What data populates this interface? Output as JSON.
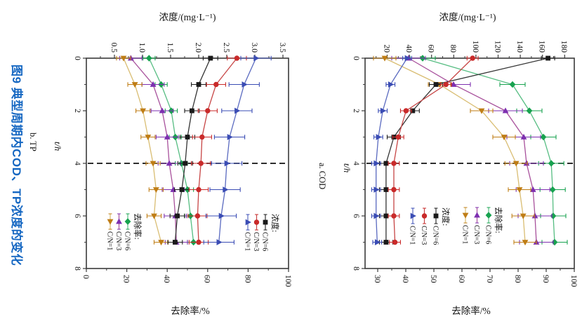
{
  "figure": {
    "caption": "图9 典型周期内COD、TP浓度的变化",
    "caption_color": "#1567c2",
    "background": "#ffffff",
    "spine_color": "#3a3a3a",
    "phase_line_color": "#111111"
  },
  "chart_data": [
    {
      "id": "cod",
      "type": "line",
      "panel_label": "a. COD",
      "time_axis": {
        "label": "t/h",
        "range": [
          0,
          8
        ],
        "ticks": [
          0,
          2,
          4,
          6,
          8
        ],
        "tick_labels": [
          "0",
          "2",
          "4",
          "6",
          "8"
        ],
        "minor": [
          1,
          3,
          5,
          7
        ]
      },
      "conc_axis": {
        "title": "浓度/(mg·L⁻¹)",
        "range": [
          0,
          188
        ],
        "ticks": [
          20,
          40,
          60,
          80,
          100,
          120,
          140,
          160,
          180
        ],
        "tick_labels": [
          "20",
          "40",
          "60",
          "80",
          "100",
          "120",
          "140",
          "160",
          "180"
        ],
        "minor": [
          10,
          30,
          50,
          70,
          90,
          110,
          130,
          150,
          170
        ]
      },
      "removal_axis": {
        "title": "去除率/%",
        "range": [
          25.6,
          100
        ],
        "ticks": [
          30,
          40,
          50,
          60,
          70,
          80,
          90,
          100
        ],
        "tick_labels": [
          "30",
          "40",
          "50",
          "60",
          "70",
          "80",
          "90",
          "100"
        ],
        "minor": [
          35,
          45,
          55,
          65,
          75,
          85,
          95
        ]
      },
      "phase_line_t": 4,
      "t": [
        0,
        1,
        2,
        3,
        4,
        5,
        6,
        7
      ],
      "series": [
        {
          "group": "removal",
          "name": "C/N=6",
          "marker": "diamond",
          "color": "#17a24f",
          "line": "#56bd82",
          "err": 4.5,
          "values": [
            46,
            78,
            84,
            89,
            91.8,
            92.3,
            92.5,
            93
          ]
        },
        {
          "group": "removal",
          "name": "C/N=3",
          "marker": "triangle-up",
          "color": "#7d2fb0",
          "line": "#a8519c",
          "err": 6,
          "values": [
            41,
            57,
            75.5,
            82,
            83,
            85.3,
            86,
            86.5
          ]
        },
        {
          "group": "removal",
          "name": "C/N=1",
          "marker": "triangle-down",
          "color": "#bf7d15",
          "line": "#d9bd72",
          "err": 4,
          "values": [
            32.5,
            52,
            67,
            75,
            79.3,
            80.5,
            81.8,
            82.5
          ]
        },
        {
          "group": "conc",
          "name": "C/N=6",
          "marker": "square",
          "color": "#1a1a1a",
          "line": "#333333",
          "err": 6,
          "values": [
            165,
            64,
            43,
            26,
            19,
            19,
            19,
            19
          ]
        },
        {
          "group": "conc",
          "name": "C/N=3",
          "marker": "circle",
          "color": "#c92a2a",
          "line": "#c74545",
          "err": 5,
          "values": [
            97,
            73,
            37,
            30,
            26,
            26,
            26,
            27
          ]
        },
        {
          "group": "conc",
          "name": "C/N=1",
          "marker": "triangle-right",
          "color": "#3a4cb4",
          "line": "#5a6ac0",
          "err": 4,
          "values": [
            38,
            23,
            16,
            12,
            10,
            10,
            10,
            11
          ]
        }
      ],
      "legends": [
        {
          "title": "浓度:",
          "group": "conc"
        },
        {
          "title": "去除率:",
          "group": "removal"
        }
      ]
    },
    {
      "id": "tp",
      "type": "line",
      "panel_label": "b. TP",
      "time_axis": {
        "label": "t/h",
        "range": [
          0,
          8
        ],
        "ticks": [
          0,
          2,
          4,
          6,
          8
        ],
        "tick_labels": [
          "0",
          "2",
          "4",
          "6",
          "8"
        ],
        "minor": [
          1,
          3,
          5,
          7
        ]
      },
      "conc_axis": {
        "title": "浓度/(mg·L⁻¹)",
        "range": [
          0,
          3.6
        ],
        "ticks": [
          0.5,
          1.0,
          1.5,
          2.0,
          2.5,
          3.0,
          3.5
        ],
        "tick_labels": [
          "0.5",
          "1.0",
          "1.5",
          "2.0",
          "2.5",
          "3.0",
          "3.5"
        ],
        "minor": [
          0.25,
          0.75,
          1.25,
          1.75,
          2.25,
          2.75,
          3.25
        ]
      },
      "removal_axis": {
        "title": "去除率/%",
        "range": [
          0,
          100
        ],
        "ticks": [
          0,
          20,
          40,
          60,
          80,
          100
        ],
        "tick_labels": [
          "0",
          "20",
          "40",
          "60",
          "80",
          "100"
        ],
        "minor": [
          10,
          30,
          50,
          70,
          90
        ]
      },
      "phase_line_t": 4,
      "t": [
        0,
        1,
        2,
        3,
        4,
        5,
        6,
        7
      ],
      "series": [
        {
          "group": "removal",
          "name": "C/N=6",
          "marker": "diamond",
          "color": "#17a24f",
          "line": "#56bd82",
          "err": 3,
          "values": [
            31,
            37,
            42,
            44,
            47,
            50,
            51.5,
            53
          ]
        },
        {
          "group": "removal",
          "name": "C/N=3",
          "marker": "triangle-up",
          "color": "#7d2fb0",
          "line": "#a8519c",
          "err": 5.5,
          "values": [
            22,
            33,
            37.5,
            40,
            41,
            43,
            44,
            44.5
          ]
        },
        {
          "group": "removal",
          "name": "C/N=1",
          "marker": "triangle-down",
          "color": "#bf7d15",
          "line": "#d9bd72",
          "err": 3.5,
          "values": [
            18.4,
            24,
            28,
            30.5,
            33,
            34.5,
            33.5,
            37
          ]
        },
        {
          "group": "conc",
          "name": "C/N=6",
          "marker": "square",
          "color": "#1a1a1a",
          "line": "#333333",
          "err": 0.13,
          "values": [
            2.21,
            2.0,
            1.88,
            1.8,
            1.76,
            1.7,
            1.62,
            1.58
          ]
        },
        {
          "group": "conc",
          "name": "C/N=3",
          "marker": "circle",
          "color": "#c92a2a",
          "line": "#c74545",
          "err": 0.17,
          "values": [
            2.68,
            2.31,
            2.16,
            2.06,
            2.04,
            2.0,
            1.98,
            2.0
          ]
        },
        {
          "group": "conc",
          "name": "C/N=1",
          "marker": "triangle-right",
          "color": "#3a4cb4",
          "line": "#5a6ac0",
          "err": 0.27,
          "values": [
            3.02,
            2.81,
            2.68,
            2.55,
            2.5,
            2.47,
            2.4,
            2.36
          ]
        }
      ],
      "legends": [
        {
          "title": "去除率:",
          "group": "removal"
        },
        {
          "title": "浓度:",
          "group": "conc"
        }
      ]
    }
  ]
}
